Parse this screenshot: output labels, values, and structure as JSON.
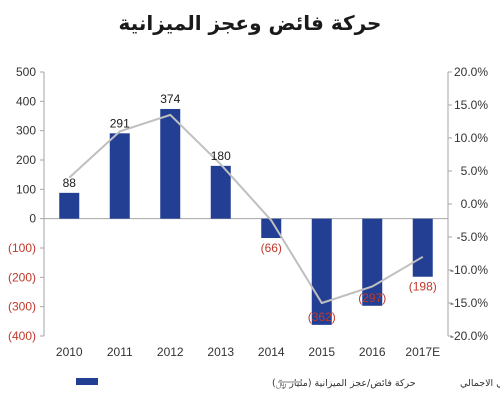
{
  "chart_data": {
    "type": "bar",
    "title": "حركة فائض وعجز الميزانية",
    "categories": [
      "2010",
      "2011",
      "2012",
      "2013",
      "2014",
      "2015",
      "2016",
      "2017E"
    ],
    "series": [
      {
        "name": "حركة فائض/عجز الميزانية (مليار ﷼)",
        "type": "bar",
        "axis": "left",
        "values": [
          88,
          291,
          374,
          180,
          -66,
          -362,
          -297,
          -198
        ],
        "labels": [
          "88",
          "291",
          "374",
          "180",
          "(66)",
          "(362)",
          "(297)",
          "(198)"
        ]
      },
      {
        "name": "كنسبة من الناتج المحلي الاجمالي",
        "type": "line",
        "axis": "right",
        "values": [
          4.0,
          11.0,
          13.5,
          6.0,
          -2.5,
          -15.0,
          -12.5,
          -8.0
        ]
      }
    ],
    "ylim": [
      -400,
      500
    ],
    "y_ticks": [
      "500",
      "400",
      "300",
      "200",
      "100",
      "0",
      "(100)",
      "(200)",
      "(300)",
      "(400)"
    ],
    "y2lim": [
      -20,
      20
    ],
    "y2_ticks": [
      "20.0%",
      "15.0%",
      "10.0%",
      "5.0%",
      "0.0%",
      "-5.0%",
      "-10.0%",
      "-15.0%",
      "-20.0%"
    ],
    "grid": false,
    "legend_position": "bottom",
    "colors": {
      "bar": "#223f94",
      "line": "#bfbfbf",
      "negative_text": "#c0392b",
      "text": "#333333",
      "axis": "#a6a6a6"
    }
  }
}
